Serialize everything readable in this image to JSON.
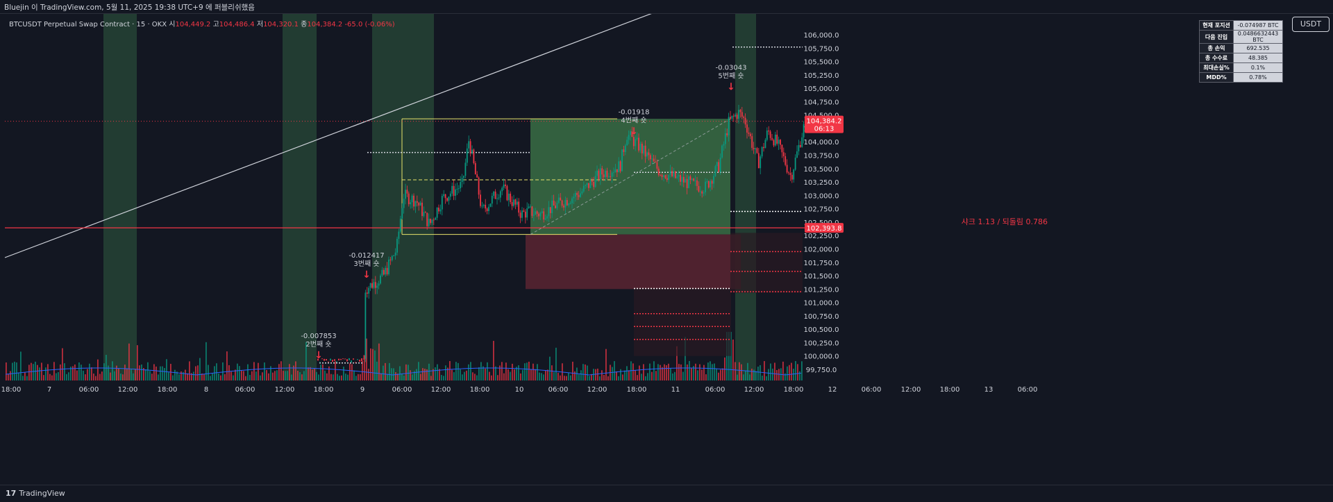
{
  "window": {
    "title": "Bluejin 이 TradingView.com, 5월 11, 2025 19:38 UTC+9 에 퍼블리쉬했음"
  },
  "legend": {
    "symbol": "BTCUSDT Perpetual Swap Contract · 15 · OKX",
    "o_label": "시",
    "o": "104,449.2",
    "h_label": "고",
    "h": "104,486.4",
    "l_label": "저",
    "l": "104,320.1",
    "c_label": "종",
    "c": "104,384.2",
    "change": "-65.0 (-0.06%)"
  },
  "position_table": [
    {
      "key": "현재 포지션",
      "value": "-0.074987 BTC"
    },
    {
      "key": "다음 진입",
      "value": "0.0486632443 BTC"
    },
    {
      "key": "총 손익",
      "value": "692.535"
    },
    {
      "key": "총 수수료",
      "value": "48.385"
    },
    {
      "key": "최대손실%",
      "value": "0.1%"
    },
    {
      "key": "MDD%",
      "value": "0.78%"
    }
  ],
  "currency_button": "USDT",
  "footer": {
    "brand": "TradingView",
    "logo": "17"
  },
  "colors": {
    "background": "#131722",
    "up": "#089981",
    "down": "#f23645",
    "session": "#2f5b3f",
    "box_green": "#3f7a4a",
    "box_red": "#5a2431",
    "range_line": "#e8e36b",
    "trendline": "#d1d4dc",
    "volume_ma": "#2962ff"
  },
  "chart_data": {
    "type": "candlestick",
    "y_axis": {
      "min": 99750,
      "max": 106000,
      "step": 250,
      "tick_labels": [
        "99,750.0",
        "100,000.0",
        "100,250.0",
        "100,500.0",
        "100,750.0",
        "101,000.0",
        "101,250.0",
        "101,500.0",
        "101,750.0",
        "102,000.0",
        "102,250.0",
        "102,500.0",
        "102,750.0",
        "103,000.0",
        "103,250.0",
        "103,500.0",
        "103,750.0",
        "104,000.0",
        "104,250.0",
        "104,500.0",
        "104,750.0",
        "105,000.0",
        "105,250.0",
        "105,500.0",
        "105,750.0",
        "106,000.0"
      ]
    },
    "x_axis": {
      "tick_labels": [
        "18:00",
        "7",
        "06:00",
        "12:00",
        "18:00",
        "8",
        "06:00",
        "12:00",
        "18:00",
        "9",
        "06:00",
        "12:00",
        "18:00",
        "10",
        "06:00",
        "12:00",
        "18:00",
        "11",
        "06:00",
        "12:00",
        "18:00",
        "12",
        "06:00",
        "12:00",
        "18:00",
        "13",
        "06:00"
      ]
    },
    "last_price": {
      "value": 104384.2,
      "label": "104,384.2",
      "countdown": "06:13"
    },
    "horizontal_level": {
      "value": 102393.8,
      "label": "102,393.8",
      "annotation": "샤크 1.13 / 되돌림 0.786"
    },
    "shorts": [
      {
        "qty": "-0.007853",
        "label": "2번째 숏"
      },
      {
        "qty": "-0.012417",
        "label": "3번째 숏"
      },
      {
        "qty": "-0.01918",
        "label": "4번째 숏"
      },
      {
        "qty": "-0.03043",
        "label": "5번째 숏"
      }
    ],
    "range_box": {
      "top": 104430,
      "mid": 103290,
      "bottom": 102270
    },
    "price_path": [
      [
        "9 00:00",
        99950
      ],
      [
        "9 00:15",
        101250
      ],
      [
        "9 03:00",
        101500
      ],
      [
        "9 05:00",
        102000
      ],
      [
        "9 06:00",
        103000
      ],
      [
        "9 08:00",
        102900
      ],
      [
        "9 10:00",
        102450
      ],
      [
        "9 12:00",
        102950
      ],
      [
        "9 15:00",
        103200
      ],
      [
        "9 16:00",
        104050
      ],
      [
        "9 18:00",
        102700
      ],
      [
        "9 21:00",
        103150
      ],
      [
        "10 00:00",
        102650
      ],
      [
        "10 01:00",
        102700
      ],
      [
        "10 03:00",
        102650
      ],
      [
        "10 05:00",
        102800
      ],
      [
        "10 09:00",
        103050
      ],
      [
        "10 12:00",
        103400
      ],
      [
        "10 15:00",
        103550
      ],
      [
        "10 16:00",
        104150
      ],
      [
        "10 18:00",
        103900
      ],
      [
        "10 21:00",
        103450
      ],
      [
        "11 02:00",
        103200
      ],
      [
        "11 04:00",
        103150
      ],
      [
        "11 06:00",
        103550
      ],
      [
        "11 07:30",
        104350
      ],
      [
        "11 09:00",
        104550
      ],
      [
        "11 10:00",
        104400
      ],
      [
        "11 12:00",
        103600
      ],
      [
        "11 13:30",
        104200
      ],
      [
        "11 15:00",
        103950
      ],
      [
        "11 17:00",
        103350
      ],
      [
        "11 19:00",
        104300
      ]
    ]
  }
}
